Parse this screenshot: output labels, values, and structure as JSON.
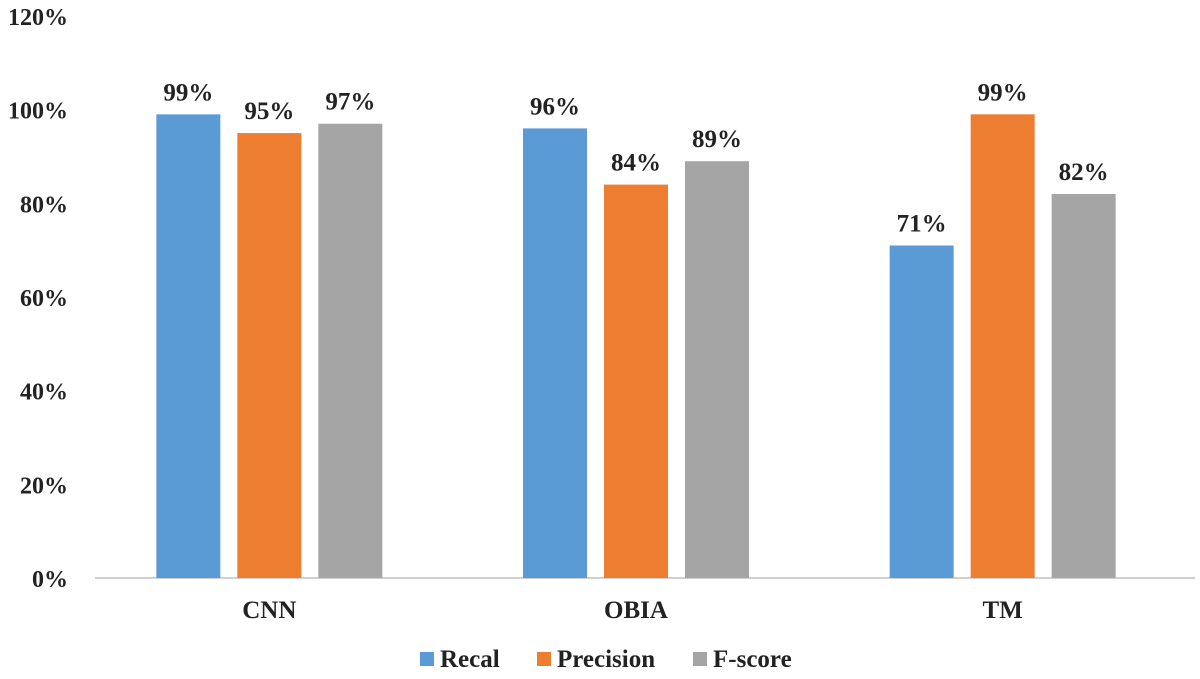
{
  "chart_data": {
    "type": "bar",
    "title": "",
    "xlabel": "",
    "ylabel": "",
    "ylim": [
      0,
      120
    ],
    "yticks": [
      "0%",
      "20%",
      "40%",
      "60%",
      "80%",
      "100%",
      "120%"
    ],
    "grid": false,
    "legend_position": "bottom",
    "categories": [
      "CNN",
      "OBIA",
      "TM"
    ],
    "series": [
      {
        "name": "Recal",
        "values": [
          99,
          96,
          71
        ],
        "labels": [
          "99%",
          "96%",
          "71%"
        ],
        "color": "#5b9bd5"
      },
      {
        "name": "Precision",
        "values": [
          95,
          84,
          99
        ],
        "labels": [
          "95%",
          "84%",
          "99%"
        ],
        "color": "#ed7d31"
      },
      {
        "name": "F-score",
        "values": [
          97,
          89,
          82
        ],
        "labels": [
          "97%",
          "89%",
          "82%"
        ],
        "color": "#a5a5a5"
      }
    ]
  }
}
